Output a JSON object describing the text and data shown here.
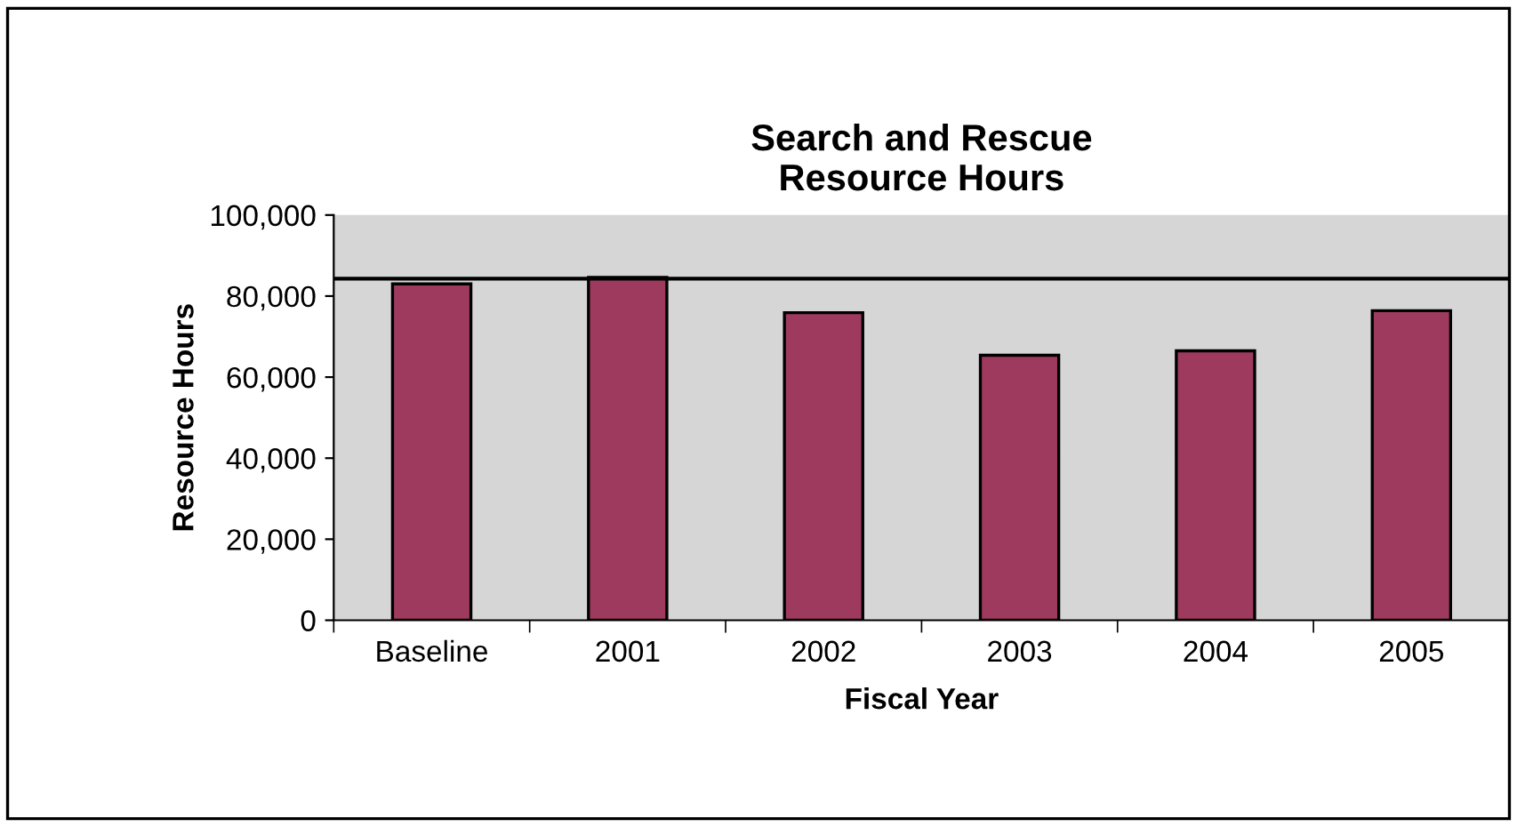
{
  "chart_data": {
    "type": "bar",
    "title": "Search and Rescue\nResource Hours",
    "xlabel": "Fiscal Year",
    "ylabel": "Resource Hours",
    "categories": [
      "Baseline",
      "2001",
      "2002",
      "2003",
      "2004",
      "2005"
    ],
    "values": [
      83000,
      84600,
      75900,
      65400,
      66500,
      76400
    ],
    "color": "#9e3a5e",
    "ylim": [
      0,
      100000
    ],
    "yticks": [
      {
        "value": 0,
        "label": "0"
      },
      {
        "value": 20000,
        "label": "20,000"
      },
      {
        "value": 40000,
        "label": "40,000"
      },
      {
        "value": 60000,
        "label": "60,000"
      },
      {
        "value": 80000,
        "label": "80,000"
      },
      {
        "value": 100000,
        "label": "100,000"
      }
    ],
    "ref_lines": [
      {
        "axis": "y",
        "value": 84300,
        "label": null,
        "color": "#000000"
      }
    ],
    "grid": false,
    "legend": false
  }
}
